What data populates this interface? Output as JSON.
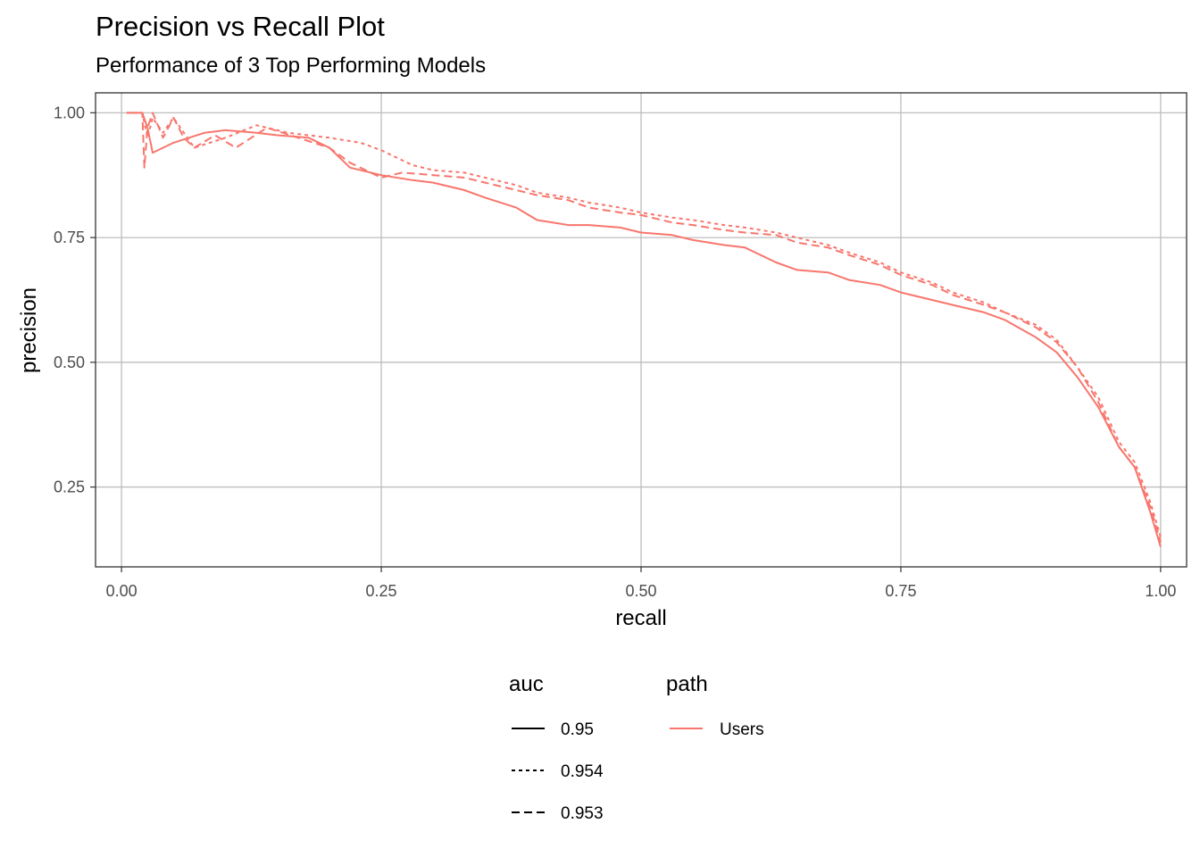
{
  "chart_data": {
    "type": "line",
    "title": "Precision vs Recall Plot",
    "subtitle": "Performance of 3 Top Performing Models",
    "xlabel": "recall",
    "ylabel": "precision",
    "xlim": [
      -0.025,
      1.025
    ],
    "ylim": [
      0.09,
      1.04
    ],
    "x_ticks": [
      "0.00",
      "0.25",
      "0.50",
      "0.75",
      "1.00"
    ],
    "y_ticks": [
      "0.25",
      "0.50",
      "0.75",
      "1.00"
    ],
    "grid": true,
    "legend_position": "bottom",
    "color": "#F8766D",
    "legends": [
      {
        "title": "auc",
        "entries": [
          "0.95",
          "0.954",
          "0.953"
        ]
      },
      {
        "title": "path",
        "entries": [
          "Users"
        ]
      }
    ],
    "series": [
      {
        "auc": "0.95",
        "path": "Users",
        "linetype": "solid",
        "x": [
          0.005,
          0.02,
          0.025,
          0.03,
          0.05,
          0.08,
          0.1,
          0.13,
          0.15,
          0.18,
          0.2,
          0.22,
          0.25,
          0.28,
          0.3,
          0.33,
          0.35,
          0.38,
          0.4,
          0.43,
          0.45,
          0.48,
          0.5,
          0.53,
          0.55,
          0.58,
          0.6,
          0.63,
          0.65,
          0.68,
          0.7,
          0.73,
          0.75,
          0.78,
          0.8,
          0.83,
          0.85,
          0.88,
          0.9,
          0.92,
          0.94,
          0.96,
          0.975,
          0.99,
          1.0
        ],
        "y": [
          1.0,
          1.0,
          0.97,
          0.92,
          0.94,
          0.96,
          0.965,
          0.96,
          0.955,
          0.95,
          0.93,
          0.89,
          0.875,
          0.865,
          0.86,
          0.845,
          0.83,
          0.81,
          0.785,
          0.775,
          0.775,
          0.77,
          0.76,
          0.755,
          0.745,
          0.735,
          0.73,
          0.7,
          0.685,
          0.68,
          0.665,
          0.655,
          0.64,
          0.625,
          0.615,
          0.6,
          0.585,
          0.55,
          0.52,
          0.47,
          0.41,
          0.33,
          0.29,
          0.2,
          0.13
        ]
      },
      {
        "auc": "0.954",
        "path": "Users",
        "linetype": "dotted",
        "x": [
          0.005,
          0.02,
          0.025,
          0.03,
          0.04,
          0.05,
          0.07,
          0.1,
          0.13,
          0.16,
          0.2,
          0.23,
          0.25,
          0.28,
          0.3,
          0.33,
          0.35,
          0.38,
          0.4,
          0.43,
          0.45,
          0.48,
          0.5,
          0.53,
          0.55,
          0.58,
          0.6,
          0.63,
          0.65,
          0.68,
          0.7,
          0.73,
          0.75,
          0.78,
          0.8,
          0.83,
          0.85,
          0.88,
          0.9,
          0.92,
          0.94,
          0.96,
          0.975,
          0.99,
          1.0
        ],
        "y": [
          1.0,
          1.0,
          0.95,
          0.99,
          0.96,
          0.99,
          0.93,
          0.95,
          0.975,
          0.96,
          0.95,
          0.94,
          0.925,
          0.895,
          0.885,
          0.88,
          0.87,
          0.855,
          0.84,
          0.83,
          0.82,
          0.81,
          0.8,
          0.79,
          0.785,
          0.775,
          0.77,
          0.76,
          0.75,
          0.735,
          0.72,
          0.7,
          0.68,
          0.66,
          0.64,
          0.62,
          0.6,
          0.575,
          0.545,
          0.49,
          0.43,
          0.34,
          0.3,
          0.22,
          0.15
        ]
      },
      {
        "auc": "0.953",
        "path": "Users",
        "linetype": "dashed",
        "x": [
          0.005,
          0.02,
          0.022,
          0.025,
          0.03,
          0.04,
          0.05,
          0.06,
          0.07,
          0.09,
          0.11,
          0.14,
          0.17,
          0.2,
          0.22,
          0.25,
          0.27,
          0.3,
          0.33,
          0.35,
          0.38,
          0.4,
          0.43,
          0.45,
          0.48,
          0.5,
          0.53,
          0.55,
          0.58,
          0.6,
          0.63,
          0.65,
          0.68,
          0.7,
          0.73,
          0.75,
          0.78,
          0.8,
          0.83,
          0.85,
          0.88,
          0.9,
          0.92,
          0.94,
          0.96,
          0.975,
          0.99,
          1.0
        ],
        "y": [
          1.0,
          1.0,
          0.89,
          0.97,
          1.0,
          0.95,
          0.99,
          0.95,
          0.93,
          0.955,
          0.93,
          0.97,
          0.95,
          0.93,
          0.9,
          0.87,
          0.88,
          0.875,
          0.87,
          0.86,
          0.845,
          0.835,
          0.825,
          0.81,
          0.8,
          0.795,
          0.78,
          0.775,
          0.765,
          0.76,
          0.755,
          0.74,
          0.73,
          0.715,
          0.695,
          0.675,
          0.655,
          0.635,
          0.615,
          0.6,
          0.57,
          0.54,
          0.49,
          0.42,
          0.33,
          0.29,
          0.21,
          0.14
        ]
      }
    ]
  }
}
